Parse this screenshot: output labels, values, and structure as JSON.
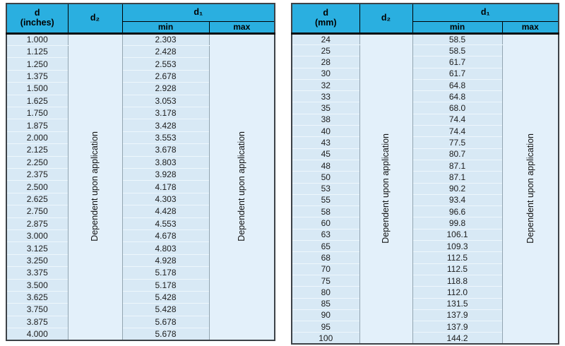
{
  "colors": {
    "header_cyan": "#2aafe0",
    "row_blue": "#d8e9f5",
    "merged_cell_blue": "#e3f0fa",
    "row_separator": "#eef7fc",
    "column_divider": "#93a5b1",
    "outer_border": "#3d4247"
  },
  "tables": [
    {
      "id": "in",
      "header": {
        "d_label": "d",
        "d_unit": "(inches)",
        "d2_label": "d₂",
        "d1_label": "d₁",
        "min_label": "min",
        "max_label": "max"
      },
      "d2_note": "Dependent upon application",
      "max_note": "Dependent upon application",
      "rows": [
        {
          "d": "1.000",
          "min": "2.303"
        },
        {
          "d": "1.125",
          "min": "2.428"
        },
        {
          "d": "1.250",
          "min": "2.553"
        },
        {
          "d": "1.375",
          "min": "2.678"
        },
        {
          "d": "1.500",
          "min": "2.928"
        },
        {
          "d": "1.625",
          "min": "3.053"
        },
        {
          "d": "1.750",
          "min": "3.178"
        },
        {
          "d": "1.875",
          "min": "3.428"
        },
        {
          "d": "2.000",
          "min": "3.553"
        },
        {
          "d": "2.125",
          "min": "3.678"
        },
        {
          "d": "2.250",
          "min": "3.803"
        },
        {
          "d": "2.375",
          "min": "3.928"
        },
        {
          "d": "2.500",
          "min": "4.178"
        },
        {
          "d": "2.625",
          "min": "4.303"
        },
        {
          "d": "2.750",
          "min": "4.428"
        },
        {
          "d": "2.875",
          "min": "4.553"
        },
        {
          "d": "3.000",
          "min": "4.678"
        },
        {
          "d": "3.125",
          "min": "4.803"
        },
        {
          "d": "3.250",
          "min": "4.928"
        },
        {
          "d": "3.375",
          "min": "5.178"
        },
        {
          "d": "3.500",
          "min": "5.178"
        },
        {
          "d": "3.625",
          "min": "5.428"
        },
        {
          "d": "3.750",
          "min": "5.428"
        },
        {
          "d": "3.875",
          "min": "5.678"
        },
        {
          "d": "4.000",
          "min": "5.678"
        }
      ]
    },
    {
      "id": "mm",
      "header": {
        "d_label": "d",
        "d_unit": "(mm)",
        "d2_label": "d₂",
        "d1_label": "d₁",
        "min_label": "min",
        "max_label": "max"
      },
      "d2_note": "Dependent upon application",
      "max_note": "Dependent upon application",
      "rows": [
        {
          "d": "24",
          "min": "58.5"
        },
        {
          "d": "25",
          "min": "58.5"
        },
        {
          "d": "28",
          "min": "61.7"
        },
        {
          "d": "30",
          "min": "61.7"
        },
        {
          "d": "32",
          "min": "64.8"
        },
        {
          "d": "33",
          "min": "64.8"
        },
        {
          "d": "35",
          "min": "68.0"
        },
        {
          "d": "38",
          "min": "74.4"
        },
        {
          "d": "40",
          "min": "74.4"
        },
        {
          "d": "43",
          "min": "77.5"
        },
        {
          "d": "45",
          "min": "80.7"
        },
        {
          "d": "48",
          "min": "87.1"
        },
        {
          "d": "50",
          "min": "87.1"
        },
        {
          "d": "53",
          "min": "90.2"
        },
        {
          "d": "55",
          "min": "93.4"
        },
        {
          "d": "58",
          "min": "96.6"
        },
        {
          "d": "60",
          "min": "99.8"
        },
        {
          "d": "63",
          "min": "106.1"
        },
        {
          "d": "65",
          "min": "109.3"
        },
        {
          "d": "68",
          "min": "112.5"
        },
        {
          "d": "70",
          "min": "112.5"
        },
        {
          "d": "75",
          "min": "118.8"
        },
        {
          "d": "80",
          "min": "112.0"
        },
        {
          "d": "85",
          "min": "131.5"
        },
        {
          "d": "90",
          "min": "137.9"
        },
        {
          "d": "95",
          "min": "137.9"
        },
        {
          "d": "100",
          "min": "144.2"
        }
      ]
    }
  ]
}
